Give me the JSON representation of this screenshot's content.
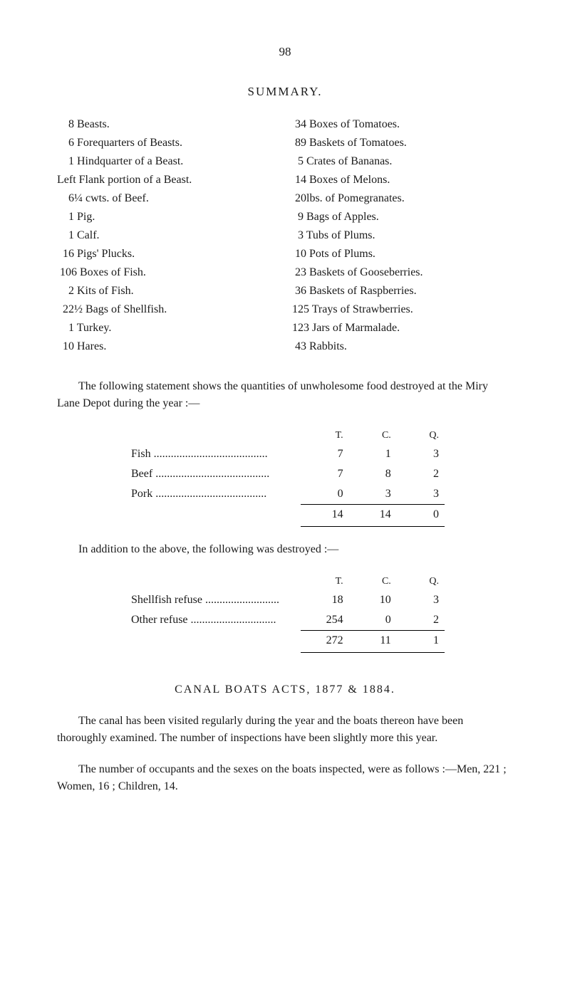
{
  "page_number": "98",
  "summary_heading": "SUMMARY.",
  "left_column": [
    "    8 Beasts.",
    "    6 Forequarters of Beasts.",
    "    1 Hindquarter of a Beast.",
    "Left Flank portion of a Beast.",
    "    6¼ cwts. of Beef.",
    "    1 Pig.",
    "    1 Calf.",
    "  16 Pigs' Plucks.",
    " 106 Boxes of Fish.",
    "    2 Kits of Fish.",
    "  22½ Bags of Shellfish.",
    "    1 Turkey.",
    "  10 Hares."
  ],
  "right_column": [
    " 34 Boxes of Tomatoes.",
    " 89 Baskets of Tomatoes.",
    "  5 Crates of Bananas.",
    " 14 Boxes of Melons.",
    " 20lbs. of Pomegranates.",
    "  9 Bags of Apples.",
    "  3 Tubs of Plums.",
    " 10 Pots of Plums.",
    " 23 Baskets of Gooseberries.",
    " 36 Baskets of Raspberries.",
    "125 Trays of Strawberries.",
    "123 Jars of Marmalade.",
    " 43 Rabbits."
  ],
  "para1": "The following statement shows the quantities of unwholesome food destroyed at the Miry Lane Depot during the year :—",
  "table1": {
    "header": {
      "t": "T.",
      "c": "C.",
      "q": "Q."
    },
    "rows": [
      {
        "label": "Fish ........................................",
        "t": "7",
        "c": "1",
        "q": "3"
      },
      {
        "label": "Beef ........................................",
        "t": "7",
        "c": "8",
        "q": "2"
      },
      {
        "label": "Pork .......................................",
        "t": "0",
        "c": "3",
        "q": "3"
      }
    ],
    "total": {
      "t": "14",
      "c": "14",
      "q": "0"
    }
  },
  "para2": "In addition to the above, the following was destroyed :—",
  "table2": {
    "header": {
      "t": "T.",
      "c": "C.",
      "q": "Q."
    },
    "rows": [
      {
        "label": "Shellfish refuse ..........................",
        "t": "18",
        "c": "10",
        "q": "3"
      },
      {
        "label": "Other refuse ..............................",
        "t": "254",
        "c": "0",
        "q": "2"
      }
    ],
    "total": {
      "t": "272",
      "c": "11",
      "q": "1"
    }
  },
  "section_heading": "CANAL  BOATS  ACTS,  1877  &  1884.",
  "para3": "The canal has been visited regularly during the year and the boats thereon have been thoroughly examined.  The number of inspections have been slightly more this year.",
  "para4": "The number of occupants and the sexes on the boats inspected, were as follows :—Men, 221 ;   Women, 16 ;   Children, 14."
}
